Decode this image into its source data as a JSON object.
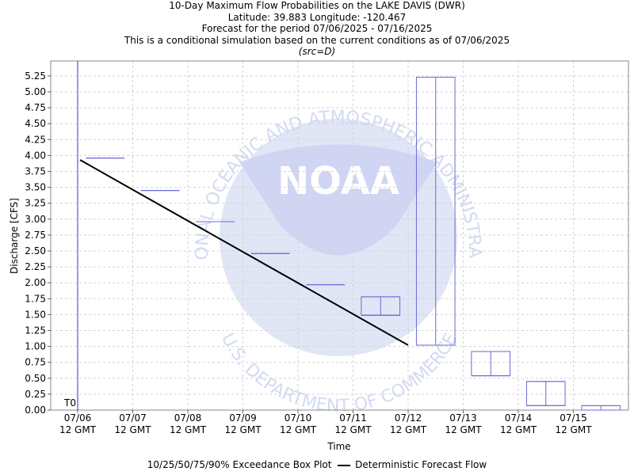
{
  "title_lines": [
    "10-Day Maximum Flow Probabilities on the LAKE DAVIS (DWR)",
    "Latitude: 39.883 Longitude: -120.467",
    "Forecast for the period 07/06/2025 - 07/16/2025",
    "This is a conditional simulation based on the current conditions as of 07/06/2025",
    "(src=D)"
  ],
  "watermark": {
    "ring_text_top": "NATIONAL OCEANIC AND ATMOSPHERIC ADMINISTRATION",
    "ring_text_bottom": "U.S. DEPARTMENT OF COMMERCE",
    "logo_text": "NOAA"
  },
  "legend": {
    "box_label": "10/25/50/75/90% Exceedance Box Plot",
    "line_label": "Deterministic Forecast Flow"
  },
  "colors": {
    "box": "#6a6ad8",
    "line": "#000000",
    "grid": "#d3d3d3",
    "watermark": "#b9c6ee"
  },
  "chart_data": {
    "type": "box",
    "title": "10-Day Maximum Flow Probabilities on the LAKE DAVIS (DWR)",
    "xlabel": "Time",
    "ylabel": "Discharge [CFS]",
    "ylim": [
      0,
      5.25
    ],
    "y_ticks": [
      "0.00",
      "0.25",
      "0.50",
      "0.75",
      "1.00",
      "1.25",
      "1.50",
      "1.75",
      "2.00",
      "2.25",
      "2.50",
      "2.75",
      "3.00",
      "3.25",
      "3.50",
      "3.75",
      "4.00",
      "4.25",
      "4.50",
      "4.75",
      "5.00",
      "5.25"
    ],
    "x_ticks": [
      {
        "date": "07/06",
        "time": "12 GMT"
      },
      {
        "date": "07/07",
        "time": "12 GMT"
      },
      {
        "date": "07/08",
        "time": "12 GMT"
      },
      {
        "date": "07/09",
        "time": "12 GMT"
      },
      {
        "date": "07/10",
        "time": "12 GMT"
      },
      {
        "date": "07/11",
        "time": "12 GMT"
      },
      {
        "date": "07/12",
        "time": "12 GMT"
      },
      {
        "date": "07/13",
        "time": "12 GMT"
      },
      {
        "date": "07/14",
        "time": "12 GMT"
      },
      {
        "date": "07/15",
        "time": "12 GMT"
      }
    ],
    "t0_label": "T0",
    "grid": true,
    "legend_position": "bottom",
    "box_series": [
      {
        "day": "07/06-07/07",
        "p10": 3.96,
        "p25": 3.96,
        "p50": 3.96,
        "p75": 3.96,
        "p90": 3.96
      },
      {
        "day": "07/07-07/08",
        "p10": 3.45,
        "p25": 3.45,
        "p50": 3.45,
        "p75": 3.45,
        "p90": 3.45
      },
      {
        "day": "07/08-07/09",
        "p10": 2.96,
        "p25": 2.96,
        "p50": 2.96,
        "p75": 2.96,
        "p90": 2.96
      },
      {
        "day": "07/09-07/10",
        "p10": 2.46,
        "p25": 2.46,
        "p50": 2.46,
        "p75": 2.46,
        "p90": 2.46
      },
      {
        "day": "07/10-07/11",
        "p10": 1.97,
        "p25": 1.97,
        "p50": 1.97,
        "p75": 1.97,
        "p90": 1.97
      },
      {
        "day": "07/11-07/12",
        "p10": 1.49,
        "p25": 1.49,
        "p50": 1.49,
        "p75": 1.78,
        "p90": 1.78
      },
      {
        "day": "07/12-07/13",
        "p10": 1.02,
        "p25": 1.02,
        "p50": 1.02,
        "p75": 5.23,
        "p90": 5.23
      },
      {
        "day": "07/13-07/14",
        "p10": 0.54,
        "p25": 0.54,
        "p50": 0.54,
        "p75": 0.92,
        "p90": 0.92
      },
      {
        "day": "07/14-07/15",
        "p10": 0.07,
        "p25": 0.07,
        "p50": 0.07,
        "p75": 0.45,
        "p90": 0.45
      },
      {
        "day": "07/15-07/16",
        "p10": 0.0,
        "p25": 0.0,
        "p50": 0.0,
        "p75": 0.07,
        "p90": 0.07
      }
    ],
    "deterministic_series": {
      "name": "Deterministic Forecast Flow",
      "x": [
        "07/06 12 GMT",
        "07/12 12 GMT"
      ],
      "y": [
        3.93,
        1.02
      ]
    }
  }
}
